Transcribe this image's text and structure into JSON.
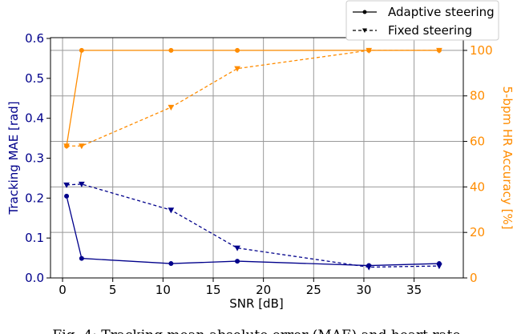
{
  "chart_data": {
    "type": "line",
    "xlabel": "SNR [dB]",
    "ylabel": "Tracking MAE [rad]",
    "y2label": "5-bpm HR Accuracy [%]",
    "x": [
      0.4,
      1.9,
      10.8,
      17.4,
      30.5,
      37.5
    ],
    "series": [
      {
        "name": "Adaptive steering",
        "color": "#00008b",
        "style": "solid",
        "marker": "circle",
        "axis": "y",
        "values": [
          0.205,
          0.049,
          0.036,
          0.042,
          0.031,
          0.036
        ]
      },
      {
        "name": "Fixed steering",
        "color": "#00008b",
        "style": "dashed",
        "marker": "triangle",
        "axis": "y",
        "values": [
          0.233,
          0.235,
          0.17,
          0.075,
          0.027,
          0.03
        ]
      },
      {
        "name": "Adaptive steering",
        "color": "#ff8c00",
        "style": "solid",
        "marker": "circle",
        "axis": "y2",
        "values": [
          58,
          100,
          100,
          100,
          100,
          100
        ]
      },
      {
        "name": "Fixed steering",
        "color": "#ff8c00",
        "style": "dashed",
        "marker": "triangle",
        "axis": "y2",
        "values": [
          58,
          58,
          75,
          92,
          100,
          100
        ]
      }
    ],
    "xlim": [
      -1.2,
      39.9
    ],
    "xticks": [
      0,
      5,
      10,
      15,
      20,
      25,
      30,
      35
    ],
    "ylim": [
      0,
      0.602
    ],
    "yticks": [
      {
        "value": 0,
        "label": "0.0"
      },
      0.1,
      0.2,
      0.3,
      0.4,
      0.5,
      0.6
    ],
    "y2lim": [
      0,
      105.6
    ],
    "y2ticks": [
      0,
      20,
      40,
      60,
      80,
      100
    ],
    "ycolor": "#00008b",
    "y2color": "#ff8c00",
    "grid": true,
    "legend": "top-right",
    "caption": "Fig. 4: Tracking mean absolute error (MAE) and heart rate"
  }
}
